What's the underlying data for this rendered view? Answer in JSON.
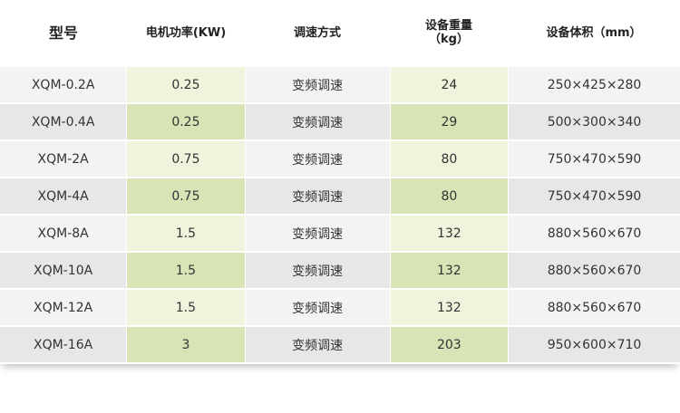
{
  "headers": [
    "型号",
    "电机功率(KW)",
    "调速方式",
    "设备重量\n（kg）",
    "设备体积（mm）"
  ],
  "header4_line1": "设备重量",
  "header4_line2": "（kg）",
  "rows": [
    [
      "XQM-0.2A",
      "0.25",
      "变频调速",
      "24",
      "250×425×280"
    ],
    [
      "XQM-0.4A",
      "0.25",
      "变频调速",
      "29",
      "500×300×340"
    ],
    [
      "XQM-2A",
      "0.75",
      "变频调速",
      "80",
      "750×470×590"
    ],
    [
      "XQM-4A",
      "0.75",
      "变频调速",
      "80",
      "750×470×590"
    ],
    [
      "XQM-8A",
      "1.5",
      "变频调速",
      "132",
      "880×560×670"
    ],
    [
      "XQM-10A",
      "1.5",
      "变频调速",
      "132",
      "880×560×670"
    ],
    [
      "XQM-12A",
      "1.5",
      "变频调速",
      "132",
      "880×560×670"
    ],
    [
      "XQM-16A",
      "3",
      "变频调速",
      "203",
      "950×600×710"
    ]
  ],
  "colors": {
    "row_light": "#f3f3f3",
    "row_dark": "#e7e7e7",
    "green_light": "#eef5dc",
    "green_dark": "#d8e4b6"
  }
}
